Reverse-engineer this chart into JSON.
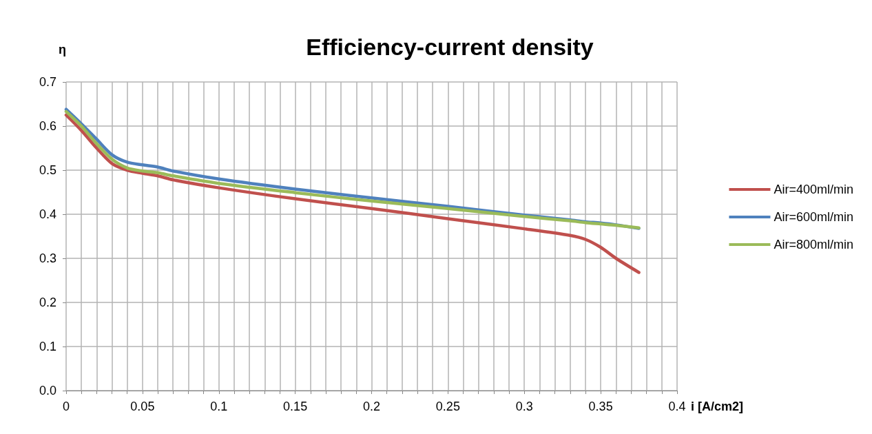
{
  "chart_data": {
    "type": "line",
    "title": "Efficiency-current density",
    "xlabel": "i [A/cm2]",
    "ylabel": "η",
    "xlim": [
      0,
      0.4
    ],
    "ylim": [
      0,
      0.7
    ],
    "xticks": [
      0,
      {
        "value": 0.01,
        "label": null
      },
      {
        "value": 0.02,
        "label": null
      },
      {
        "value": 0.03,
        "label": null
      },
      {
        "value": 0.04,
        "label": null
      },
      0.05,
      {
        "value": 0.06,
        "label": null
      },
      {
        "value": 0.07,
        "label": null
      },
      {
        "value": 0.08,
        "label": null
      },
      {
        "value": 0.09,
        "label": null
      },
      0.1,
      {
        "value": 0.11,
        "label": null
      },
      {
        "value": 0.12,
        "label": null
      },
      {
        "value": 0.13,
        "label": null
      },
      {
        "value": 0.14,
        "label": null
      },
      0.15,
      {
        "value": 0.16,
        "label": null
      },
      {
        "value": 0.17,
        "label": null
      },
      {
        "value": 0.18,
        "label": null
      },
      {
        "value": 0.19,
        "label": null
      },
      0.2,
      {
        "value": 0.21,
        "label": null
      },
      {
        "value": 0.22,
        "label": null
      },
      {
        "value": 0.23,
        "label": null
      },
      {
        "value": 0.24,
        "label": null
      },
      0.25,
      {
        "value": 0.26,
        "label": null
      },
      {
        "value": 0.27,
        "label": null
      },
      {
        "value": 0.28,
        "label": null
      },
      {
        "value": 0.29,
        "label": null
      },
      0.3,
      {
        "value": 0.31,
        "label": null
      },
      {
        "value": 0.32,
        "label": null
      },
      {
        "value": 0.33,
        "label": null
      },
      {
        "value": 0.34,
        "label": null
      },
      0.35,
      {
        "value": 0.36,
        "label": null
      },
      {
        "value": 0.37,
        "label": null
      },
      {
        "value": 0.38,
        "label": null
      },
      {
        "value": 0.39,
        "label": null
      },
      0.4
    ],
    "yticks": [
      {
        "value": 0,
        "label": "0.0"
      },
      0.1,
      0.2,
      0.3,
      0.4,
      0.5,
      0.6,
      0.7
    ],
    "grid": true,
    "legend": "right",
    "marker": "none",
    "line_style": "solid",
    "x": [
      0,
      0.01,
      0.02,
      0.03,
      0.04,
      0.05,
      0.06,
      0.07,
      0.1,
      0.15,
      0.2,
      0.25,
      0.3,
      0.33,
      0.34,
      0.35,
      0.36,
      0.375
    ],
    "series": [
      {
        "name": "Air=400ml/min",
        "color": "#c0504d",
        "values": [
          0.625,
          0.59,
          0.55,
          0.515,
          0.5,
          0.493,
          0.487,
          0.478,
          0.46,
          0.435,
          0.413,
          0.39,
          0.367,
          0.352,
          0.343,
          0.325,
          0.3,
          0.268
        ]
      },
      {
        "name": "Air=600ml/min",
        "color": "#4f81bd",
        "values": [
          0.638,
          0.605,
          0.57,
          0.535,
          0.518,
          0.512,
          0.507,
          0.498,
          0.48,
          0.457,
          0.437,
          0.418,
          0.398,
          0.387,
          0.383,
          0.38,
          0.376,
          0.368
        ]
      },
      {
        "name": "Air=800ml/min",
        "color": "#9bbb59",
        "values": [
          0.633,
          0.6,
          0.56,
          0.525,
          0.505,
          0.498,
          0.494,
          0.487,
          0.47,
          0.449,
          0.43,
          0.413,
          0.395,
          0.385,
          0.381,
          0.378,
          0.375,
          0.369
        ]
      }
    ]
  }
}
